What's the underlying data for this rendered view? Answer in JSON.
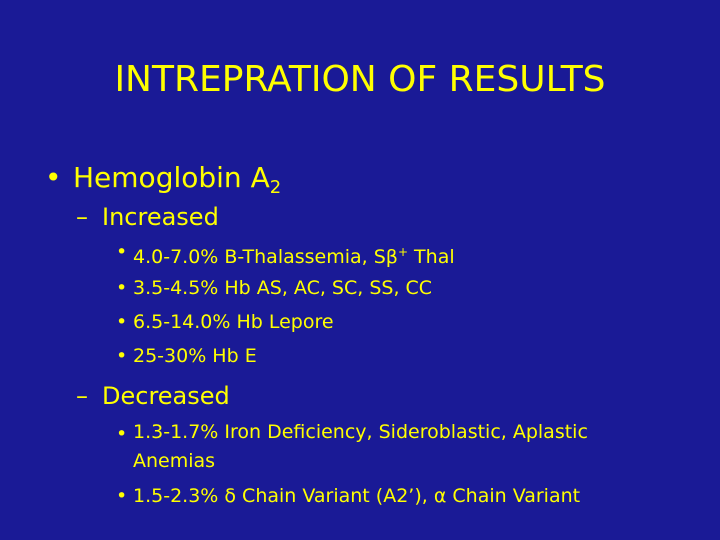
{
  "slide": {
    "title": "INTREPRATION OF RESULTS",
    "bullet_symbol": "•",
    "dash_symbol": "–",
    "heading": {
      "text": "Hemoglobin A",
      "subscript": "2"
    },
    "sections": [
      {
        "label": "Increased",
        "items": [
          {
            "prefix": "4.0-7.0% B-Thalassemia, Sβ",
            "superscript": "+",
            "suffix": " Thal"
          },
          {
            "prefix": "3.5-4.5% Hb AS, AC, SC, SS, CC"
          },
          {
            "prefix": "6.5-14.0% Hb Lepore"
          },
          {
            "prefix": "25-30% Hb E"
          }
        ]
      },
      {
        "label": "Decreased",
        "items": [
          {
            "prefix": "1.3-1.7% Iron Deficiency, Sideroblastic, Aplastic Anemias"
          },
          {
            "prefix": "1.5-2.3% δ Chain Variant (A2’), α Chain Variant"
          }
        ]
      }
    ],
    "colors": {
      "background": "#1a1a96",
      "text": "#ffff00"
    }
  }
}
